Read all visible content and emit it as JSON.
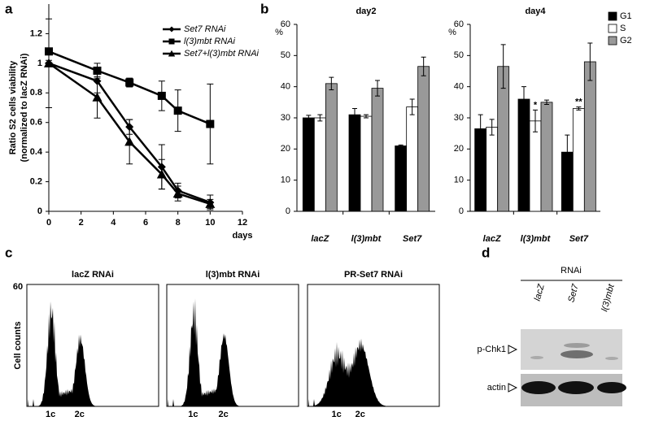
{
  "panel_labels": [
    "a",
    "b",
    "c",
    "d"
  ],
  "chart_data": [
    {
      "type": "line",
      "xlabel": "days",
      "ylabel": [
        "Ratio S2 cells viability",
        "(normalized to lacZ RNAi)"
      ],
      "x": [
        0,
        3,
        5,
        7,
        8,
        10
      ],
      "xlim": [
        0,
        12
      ],
      "xticks": [
        0,
        2,
        4,
        6,
        8,
        10,
        12
      ],
      "ylim": [
        0,
        1.4
      ],
      "yticks": [
        0,
        0.2,
        0.4,
        0.6,
        0.8,
        1,
        1.2
      ],
      "legend": "upper right",
      "series": [
        {
          "name": "Set7 RNAi",
          "color": "#000000",
          "marker": "diamond",
          "values": [
            1.0,
            0.88,
            0.57,
            0.3,
            0.14,
            0.06
          ],
          "errors": [
            0.3,
            0.08,
            0.05,
            0.15,
            0.05,
            0.05
          ]
        },
        {
          "name": "l(3)mbt RNAi",
          "color": "#000000",
          "marker": "square",
          "values": [
            1.08,
            0.95,
            0.87,
            0.78,
            0.68,
            0.59
          ],
          "errors": [
            0.02,
            0.05,
            0.03,
            0.1,
            0.14,
            0.27
          ]
        },
        {
          "name": "Set7+l(3)mbt RNAi",
          "color": "#000000",
          "marker": "triangle",
          "values": [
            1.0,
            0.77,
            0.47,
            0.25,
            0.12,
            0.05
          ],
          "errors": [
            0.02,
            0.14,
            0.15,
            0.1,
            0.05,
            0.03
          ]
        }
      ]
    },
    {
      "type": "bar",
      "title": "day2",
      "ylabel": "%",
      "categories": [
        "lacZ",
        "l(3)mbt",
        "Set7"
      ],
      "ylim": [
        0,
        60
      ],
      "yticks": [
        0,
        10,
        20,
        30,
        40,
        50,
        60
      ],
      "series": [
        {
          "color": "#000000",
          "values": [
            30,
            31,
            21
          ],
          "errors": [
            0.8,
            2,
            0.3
          ]
        },
        {
          "color": "#ffffff",
          "values": [
            30,
            30.5,
            33.5
          ],
          "errors": [
            1,
            0.5,
            2.5
          ]
        },
        {
          "color": "#999999",
          "values": [
            41,
            39.5,
            46.5
          ],
          "errors": [
            2,
            2.5,
            3
          ]
        }
      ]
    },
    {
      "type": "bar",
      "title": "day4",
      "ylabel": "%",
      "categories": [
        "lacZ",
        "l(3)mbt",
        "Set7"
      ],
      "ylim": [
        0,
        60
      ],
      "yticks": [
        0,
        10,
        20,
        30,
        40,
        50,
        60
      ],
      "legend": "right",
      "series": [
        {
          "name": "G1",
          "color": "#000000",
          "values": [
            26.5,
            36,
            19
          ],
          "errors": [
            4.5,
            4,
            5.5
          ]
        },
        {
          "name": "S",
          "color": "#ffffff",
          "values": [
            27,
            29,
            33
          ],
          "errors": [
            2.5,
            3.5,
            0.5
          ]
        },
        {
          "name": "G2",
          "color": "#999999",
          "values": [
            46.5,
            35,
            48
          ],
          "errors": [
            7,
            0.7,
            6
          ]
        }
      ],
      "annotations": [
        {
          "text": "*",
          "series": "S",
          "category": "l(3)mbt"
        },
        {
          "text": "**",
          "series": "S",
          "category": "Set7"
        }
      ]
    }
  ],
  "flow": {
    "titles": [
      "lacZ RNAi",
      "l(3)mbt RNAi",
      "PR-Set7 RNAi"
    ],
    "ylabel": "Cell counts",
    "ymax": 60,
    "peaks": [
      "1c",
      "2c"
    ]
  },
  "western": {
    "header": "RNAi",
    "lanes": [
      "lacZ",
      "Set7",
      "l(3)mbt"
    ],
    "rows": [
      "p-Chk1",
      "actin"
    ]
  }
}
